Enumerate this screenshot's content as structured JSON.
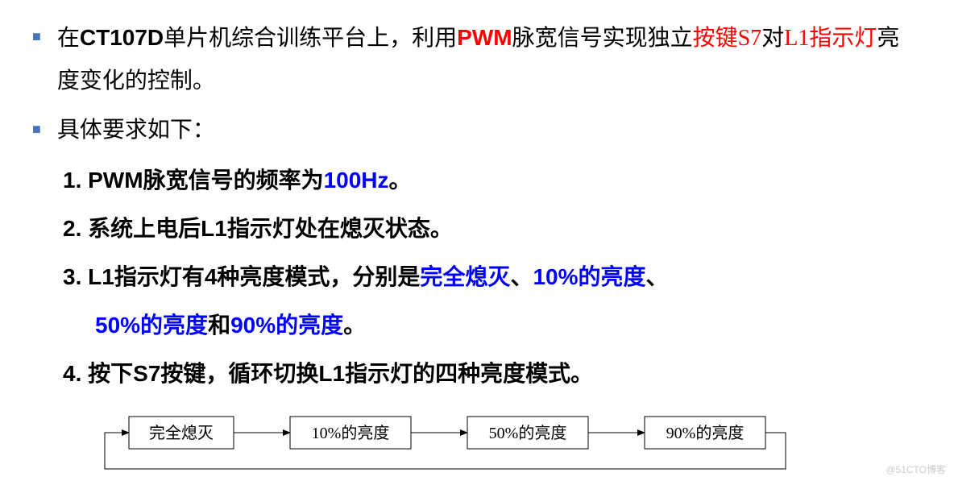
{
  "bullet1": {
    "parts": [
      {
        "t": "在",
        "cls": ""
      },
      {
        "t": "CT107D",
        "cls": "bold"
      },
      {
        "t": "单片机综合训练平台上，利用",
        "cls": ""
      },
      {
        "t": "PWM",
        "cls": "bold red"
      },
      {
        "t": "脉宽信号实现独立",
        "cls": ""
      },
      {
        "t": "按键S7",
        "cls": "red"
      },
      {
        "t": "对",
        "cls": ""
      },
      {
        "t": "L1指示灯",
        "cls": "red"
      },
      {
        "t": "亮度变化的控制。",
        "cls": ""
      }
    ]
  },
  "bullet2": {
    "text": "具体要求如下："
  },
  "item1": {
    "parts": [
      {
        "t": "1. PWM",
        "cls": "bold"
      },
      {
        "t": "脉宽信号的频率为",
        "cls": "bold"
      },
      {
        "t": "100Hz",
        "cls": "bold blue"
      },
      {
        "t": "。",
        "cls": "bold"
      }
    ]
  },
  "item2": {
    "parts": [
      {
        "t": "2. ",
        "cls": "bold"
      },
      {
        "t": "系统上电后",
        "cls": "bold"
      },
      {
        "t": "L1",
        "cls": "bold"
      },
      {
        "t": "指示灯处在熄灭状态。",
        "cls": "bold"
      }
    ]
  },
  "item3": {
    "parts": [
      {
        "t": "3. L1",
        "cls": "bold"
      },
      {
        "t": "指示灯有",
        "cls": "bold"
      },
      {
        "t": "4",
        "cls": "bold"
      },
      {
        "t": "种亮度模式，分别是",
        "cls": "bold"
      },
      {
        "t": "完全熄灭",
        "cls": "bold blue"
      },
      {
        "t": "、",
        "cls": "bold"
      },
      {
        "t": "10%",
        "cls": "bold blue"
      },
      {
        "t": "的亮度",
        "cls": "bold blue"
      },
      {
        "t": "、",
        "cls": "bold"
      }
    ]
  },
  "item3b": {
    "parts": [
      {
        "t": "50%",
        "cls": "bold blue"
      },
      {
        "t": "的亮度",
        "cls": "bold blue"
      },
      {
        "t": "和",
        "cls": "bold"
      },
      {
        "t": "90%",
        "cls": "bold blue"
      },
      {
        "t": "的亮度",
        "cls": "bold blue"
      },
      {
        "t": "。",
        "cls": "bold"
      }
    ]
  },
  "item4": {
    "parts": [
      {
        "t": "4. ",
        "cls": "bold"
      },
      {
        "t": "按下",
        "cls": "bold"
      },
      {
        "t": "S7",
        "cls": "bold"
      },
      {
        "t": "按键，循环切换",
        "cls": "bold"
      },
      {
        "t": "L1",
        "cls": "bold"
      },
      {
        "t": "指示灯的四种亮度模式。",
        "cls": "bold"
      }
    ]
  },
  "diagram": {
    "nodes": [
      "完全熄灭",
      "10%的亮度",
      "50%的亮度",
      "90%的亮度"
    ],
    "box_border": "#000000",
    "box_bg": "#ffffff",
    "box_fontsize": 22
  },
  "watermark": "@51CTO博客"
}
